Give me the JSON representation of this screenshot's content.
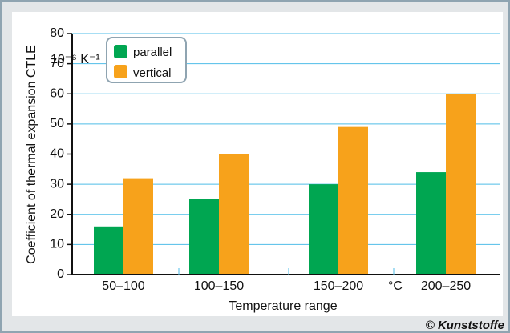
{
  "chart_data": {
    "type": "bar",
    "categories": [
      "50–100",
      "100–150",
      "150–200",
      "200–250"
    ],
    "series": [
      {
        "name": "parallel",
        "values": [
          16,
          25,
          30,
          34
        ],
        "color": "#00a651"
      },
      {
        "name": "vertical",
        "values": [
          32,
          40,
          49,
          60
        ],
        "color": "#f7a21b"
      }
    ],
    "ylim": [
      0,
      80
    ],
    "yticks": [
      0,
      10,
      20,
      30,
      40,
      50,
      60,
      70,
      80
    ],
    "xlabel": "Temperature range",
    "x_unit": "°C",
    "ylabel": "Coefficient of thermal expansion CTLE",
    "y_unit": "10⁻⁶ K⁻¹",
    "grid": true,
    "legend": "top-left",
    "credit": "© Kunststoffe",
    "colors": {
      "gridline": "#4fbde8",
      "frame": "#8fa4b1",
      "legend_border": "#8fa4b1"
    }
  }
}
